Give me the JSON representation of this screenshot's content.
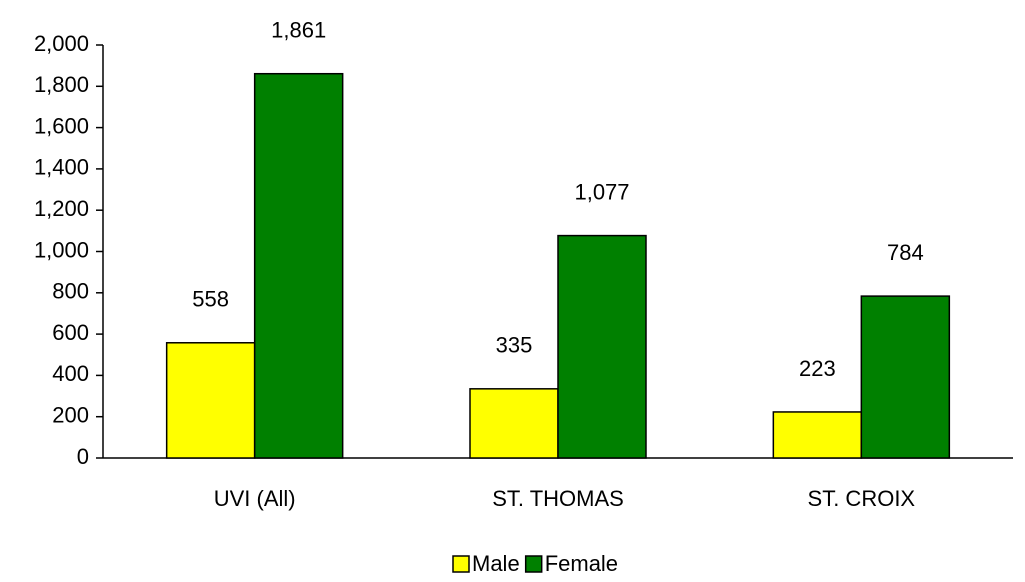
{
  "chart_data": {
    "type": "bar",
    "categories": [
      "UVI (All)",
      "ST. THOMAS",
      "ST. CROIX"
    ],
    "series": [
      {
        "name": "Male",
        "color": "#ffff00",
        "values": [
          558,
          335,
          223
        ],
        "value_labels": [
          "558",
          "335",
          "223"
        ]
      },
      {
        "name": "Female",
        "color": "#008000",
        "values": [
          1861,
          1077,
          784
        ],
        "value_labels": [
          "1,861",
          "1,077",
          "784"
        ]
      }
    ],
    "ylim": [
      0,
      2000
    ],
    "yticks": [
      0,
      200,
      400,
      600,
      800,
      {
        "value": 1000,
        "label": "1,000"
      },
      {
        "value": 1200,
        "label": "1,200"
      },
      {
        "value": 1400,
        "label": "1,400"
      },
      {
        "value": 1600,
        "label": "1,600"
      },
      {
        "value": 1800,
        "label": "1,800"
      },
      {
        "value": 2000,
        "label": "2,000"
      }
    ],
    "legend": "bottom"
  }
}
